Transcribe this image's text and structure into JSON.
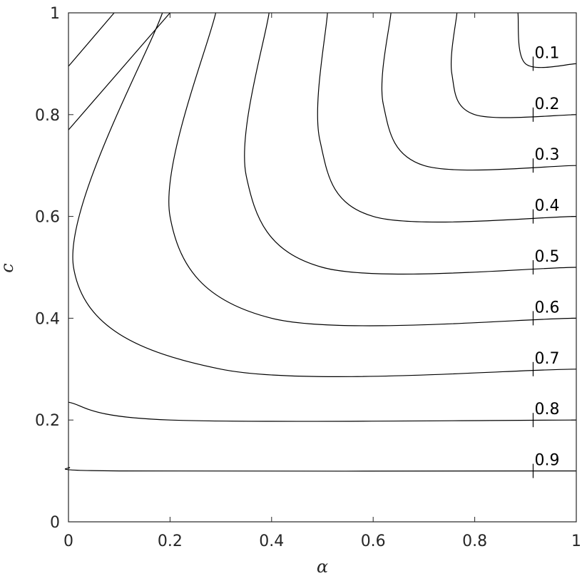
{
  "chart_data": {
    "type": "contour",
    "title": "",
    "xlabel": "α",
    "ylabel": "c",
    "xlim": [
      0,
      1
    ],
    "ylim": [
      0,
      1
    ],
    "xticks": [
      "0",
      "0.2",
      "0.4",
      "0.6",
      "0.8",
      "1"
    ],
    "yticks": [
      "0",
      "0.2",
      "0.4",
      "0.6",
      "0.8",
      "1"
    ],
    "grid": false,
    "contours": [
      {
        "level": "0.1",
        "x": [
          0.885,
          0.9,
          1.0
        ],
        "y": [
          1.0,
          0.9,
          0.9
        ]
      },
      {
        "level": "0.2",
        "x": [
          0.765,
          0.755,
          0.8,
          1.0
        ],
        "y": [
          1.0,
          0.88,
          0.8,
          0.8
        ]
      },
      {
        "level": "0.3",
        "x": [
          0.635,
          0.62,
          0.7,
          1.0
        ],
        "y": [
          1.0,
          0.82,
          0.7,
          0.7
        ]
      },
      {
        "level": "0.4",
        "x": [
          0.51,
          0.495,
          0.6,
          1.0
        ],
        "y": [
          1.0,
          0.75,
          0.6,
          0.6
        ]
      },
      {
        "level": "0.5",
        "x": [
          0.395,
          0.35,
          0.5,
          1.0
        ],
        "y": [
          1.0,
          0.68,
          0.5,
          0.5
        ]
      },
      {
        "level": "0.6",
        "x": [
          0.29,
          0.2,
          0.4,
          1.0
        ],
        "y": [
          1.0,
          0.6,
          0.4,
          0.4
        ]
      },
      {
        "level": "0.7",
        "x": [
          0.185,
          0.01,
          0.3,
          1.0
        ],
        "y": [
          1.0,
          0.5,
          0.3,
          0.3
        ]
      },
      {
        "level": "0.8",
        "x": [
          0.0,
          0.2,
          1.0
        ],
        "y": [
          0.235,
          0.2,
          0.2
        ]
      },
      {
        "level": "0.9",
        "x": [
          0.0,
          0.1,
          1.0
        ],
        "y": [
          0.107,
          0.1,
          0.1
        ]
      }
    ],
    "corner_contours": [
      {
        "x": [
          0.0,
          0.09
        ],
        "y": [
          0.895,
          1.0
        ]
      },
      {
        "x": [
          0.0,
          0.2
        ],
        "y": [
          0.77,
          1.0
        ]
      }
    ],
    "label_x": 0.915
  }
}
